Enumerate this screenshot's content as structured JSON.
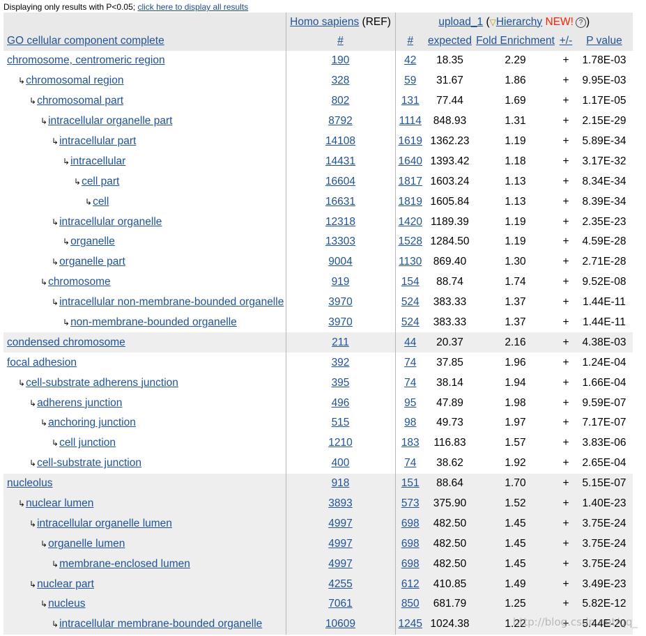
{
  "notice": {
    "text": "Displaying only results with P<0.05;",
    "link": "click here to display all results"
  },
  "header": {
    "ref_link": "Homo sapiens",
    "ref_suffix": "(REF)",
    "upload_link": "upload_1",
    "hierarchy_link": "Hierarchy",
    "new_badge": "NEW!",
    "help_icon": "?",
    "category": "GO cellular component complete",
    "ref_count": "#",
    "upload_count": "#",
    "expected": "expected",
    "fold": "Fold Enrichment",
    "plusminus": "+/-",
    "pvalue": "P value"
  },
  "rows": [
    {
      "indent": 0,
      "term": "chromosome, centromeric region",
      "ref": "190",
      "count": "42",
      "expected": "18.35",
      "fold": "2.29",
      "sign": "+",
      "p": "1.78E-03",
      "shade": false
    },
    {
      "indent": 1,
      "term": "chromosomal region",
      "ref": "328",
      "count": "59",
      "expected": "31.67",
      "fold": "1.86",
      "sign": "+",
      "p": "9.95E-03",
      "shade": false
    },
    {
      "indent": 2,
      "term": "chromosomal part",
      "ref": "802",
      "count": "131",
      "expected": "77.44",
      "fold": "1.69",
      "sign": "+",
      "p": "1.17E-05",
      "shade": false
    },
    {
      "indent": 3,
      "term": "intracellular organelle part",
      "ref": "8792",
      "count": "1114",
      "expected": "848.93",
      "fold": "1.31",
      "sign": "+",
      "p": "2.15E-29",
      "shade": false
    },
    {
      "indent": 4,
      "term": "intracellular part",
      "ref": "14108",
      "count": "1619",
      "expected": "1362.23",
      "fold": "1.19",
      "sign": "+",
      "p": "5.89E-34",
      "shade": false
    },
    {
      "indent": 5,
      "term": "intracellular",
      "ref": "14431",
      "count": "1640",
      "expected": "1393.42",
      "fold": "1.18",
      "sign": "+",
      "p": "3.17E-32",
      "shade": false
    },
    {
      "indent": 6,
      "term": "cell part",
      "ref": "16604",
      "count": "1817",
      "expected": "1603.24",
      "fold": "1.13",
      "sign": "+",
      "p": "8.34E-34",
      "shade": false
    },
    {
      "indent": 7,
      "term": "cell",
      "ref": "16631",
      "count": "1819",
      "expected": "1605.84",
      "fold": "1.13",
      "sign": "+",
      "p": "8.39E-34",
      "shade": false
    },
    {
      "indent": 4,
      "term": "intracellular organelle",
      "ref": "12318",
      "count": "1420",
      "expected": "1189.39",
      "fold": "1.19",
      "sign": "+",
      "p": "2.35E-23",
      "shade": false
    },
    {
      "indent": 5,
      "term": "organelle",
      "ref": "13303",
      "count": "1528",
      "expected": "1284.50",
      "fold": "1.19",
      "sign": "+",
      "p": "4.59E-28",
      "shade": false
    },
    {
      "indent": 4,
      "term": "organelle part",
      "ref": "9004",
      "count": "1130",
      "expected": "869.40",
      "fold": "1.30",
      "sign": "+",
      "p": "2.71E-28",
      "shade": false
    },
    {
      "indent": 3,
      "term": "chromosome",
      "ref": "919",
      "count": "154",
      "expected": "88.74",
      "fold": "1.74",
      "sign": "+",
      "p": "9.52E-08",
      "shade": false
    },
    {
      "indent": 4,
      "term": "intracellular non-membrane-bounded organelle",
      "ref": "3970",
      "count": "524",
      "expected": "383.33",
      "fold": "1.37",
      "sign": "+",
      "p": "1.44E-11",
      "shade": false
    },
    {
      "indent": 5,
      "term": "non-membrane-bounded organelle",
      "ref": "3970",
      "count": "524",
      "expected": "383.33",
      "fold": "1.37",
      "sign": "+",
      "p": "1.44E-11",
      "shade": false
    },
    {
      "indent": 0,
      "term": "condensed chromosome",
      "ref": "211",
      "count": "44",
      "expected": "20.37",
      "fold": "2.16",
      "sign": "+",
      "p": "4.38E-03",
      "shade": true
    },
    {
      "indent": 0,
      "term": "focal adhesion",
      "ref": "392",
      "count": "74",
      "expected": "37.85",
      "fold": "1.96",
      "sign": "+",
      "p": "1.24E-04",
      "shade": false
    },
    {
      "indent": 1,
      "term": "cell-substrate adherens junction",
      "ref": "395",
      "count": "74",
      "expected": "38.14",
      "fold": "1.94",
      "sign": "+",
      "p": "1.66E-04",
      "shade": false
    },
    {
      "indent": 2,
      "term": "adherens junction",
      "ref": "496",
      "count": "95",
      "expected": "47.89",
      "fold": "1.98",
      "sign": "+",
      "p": "9.59E-07",
      "shade": false
    },
    {
      "indent": 3,
      "term": "anchoring junction",
      "ref": "515",
      "count": "98",
      "expected": "49.73",
      "fold": "1.97",
      "sign": "+",
      "p": "7.17E-07",
      "shade": false
    },
    {
      "indent": 4,
      "term": "cell junction",
      "ref": "1210",
      "count": "183",
      "expected": "116.83",
      "fold": "1.57",
      "sign": "+",
      "p": "3.83E-06",
      "shade": false
    },
    {
      "indent": 2,
      "term": "cell-substrate junction",
      "ref": "400",
      "count": "74",
      "expected": "38.62",
      "fold": "1.92",
      "sign": "+",
      "p": "2.65E-04",
      "shade": false
    },
    {
      "indent": 0,
      "term": "nucleolus",
      "ref": "918",
      "count": "151",
      "expected": "88.64",
      "fold": "1.70",
      "sign": "+",
      "p": "5.15E-07",
      "shade": true
    },
    {
      "indent": 1,
      "term": "nuclear lumen",
      "ref": "3893",
      "count": "573",
      "expected": "375.90",
      "fold": "1.52",
      "sign": "+",
      "p": "1.40E-23",
      "shade": true
    },
    {
      "indent": 2,
      "term": "intracellular organelle lumen",
      "ref": "4997",
      "count": "698",
      "expected": "482.50",
      "fold": "1.45",
      "sign": "+",
      "p": "3.75E-24",
      "shade": true
    },
    {
      "indent": 3,
      "term": "organelle lumen",
      "ref": "4997",
      "count": "698",
      "expected": "482.50",
      "fold": "1.45",
      "sign": "+",
      "p": "3.75E-24",
      "shade": true
    },
    {
      "indent": 4,
      "term": "membrane-enclosed lumen",
      "ref": "4997",
      "count": "698",
      "expected": "482.50",
      "fold": "1.45",
      "sign": "+",
      "p": "3.75E-24",
      "shade": true
    },
    {
      "indent": 2,
      "term": "nuclear part",
      "ref": "4255",
      "count": "612",
      "expected": "410.85",
      "fold": "1.49",
      "sign": "+",
      "p": "3.49E-23",
      "shade": true
    },
    {
      "indent": 3,
      "term": "nucleus",
      "ref": "7061",
      "count": "850",
      "expected": "681.79",
      "fold": "1.25",
      "sign": "+",
      "p": "5.82E-12",
      "shade": true
    },
    {
      "indent": 4,
      "term": "intracellular membrane-bounded organelle",
      "ref": "10609",
      "count": "1245",
      "expected": "1024.38",
      "fold": "1.22",
      "sign": "+",
      "p": "5.44E-20",
      "shade": true
    }
  ],
  "watermark": "http://blog.csdn.net/qq_"
}
